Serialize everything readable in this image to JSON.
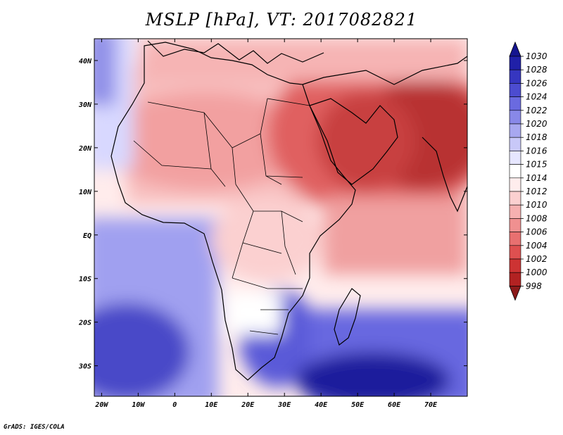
{
  "chart_data": {
    "type": "heatmap",
    "title": "MSLP [hPa], VT: 2017082821",
    "variable": "MSLP",
    "units": "hPa",
    "valid_time": "2017082821",
    "xlabel": "",
    "ylabel": "",
    "xlim": [
      -22,
      80
    ],
    "ylim": [
      -37,
      45
    ],
    "x_ticks": [
      -20,
      -10,
      0,
      10,
      20,
      30,
      40,
      50,
      60,
      70
    ],
    "x_tick_labels": [
      "20W",
      "10W",
      "0",
      "10E",
      "20E",
      "30E",
      "40E",
      "50E",
      "60E",
      "70E"
    ],
    "y_ticks": [
      40,
      30,
      20,
      10,
      0,
      -10,
      -20,
      -30
    ],
    "y_tick_labels": [
      "40N",
      "30N",
      "20N",
      "10N",
      "EQ",
      "10S",
      "20S",
      "30S"
    ],
    "colorbar": {
      "levels": [
        "998",
        "1000",
        "1002",
        "1004",
        "1006",
        "1008",
        "1010",
        "1012",
        "1014",
        "1015",
        "1016",
        "1018",
        "1020",
        "1022",
        "1024",
        "1026",
        "1028",
        "1030"
      ],
      "colors": [
        "#8b1a1a",
        "#b22222",
        "#cd3333",
        "#de5050",
        "#e87070",
        "#f09090",
        "#f6b0b0",
        "#fbd0d0",
        "#ffeded",
        "#ffffff",
        "#e6e6ff",
        "#c8c8f8",
        "#a8a8f0",
        "#8888e8",
        "#6a6ae0",
        "#4c4cd0",
        "#3636c0",
        "#2020a8",
        "#151590"
      ]
    }
  },
  "footer": {
    "credit": "GrADS: IGES/COLA"
  }
}
